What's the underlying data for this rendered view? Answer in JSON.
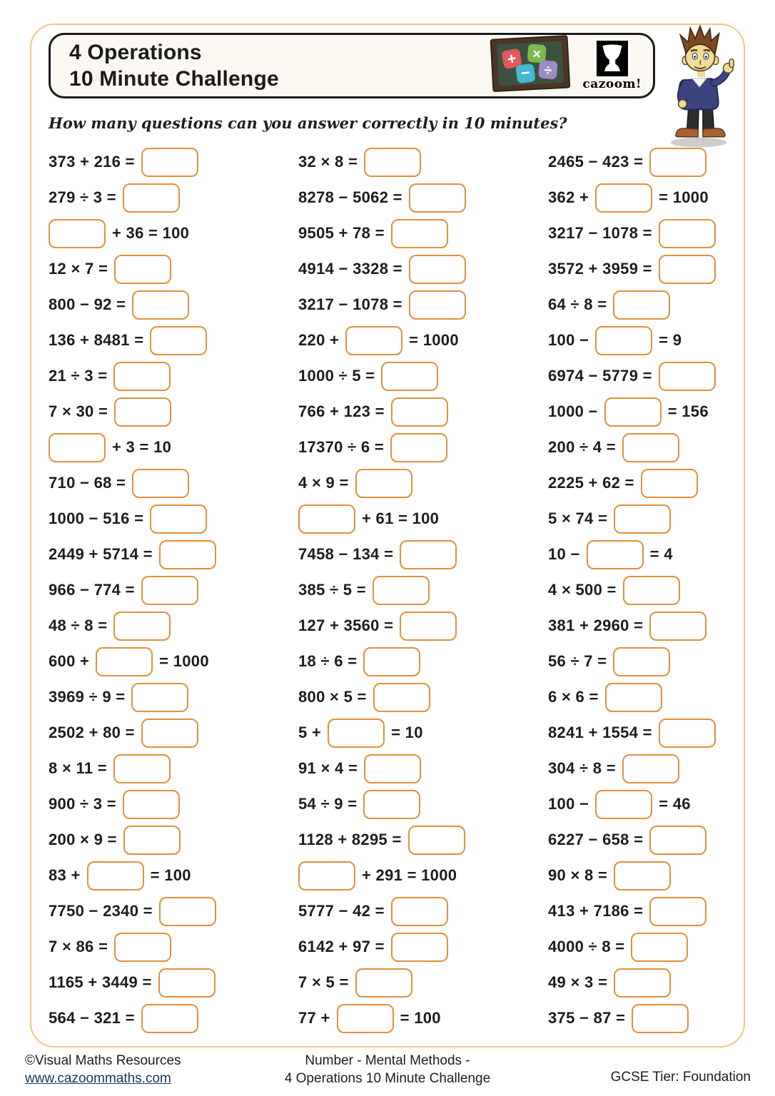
{
  "page": {
    "title_line1": "4 Operations",
    "title_line2": "10 Minute Challenge",
    "subtitle": "How many questions can you answer correctly in 10 minutes?",
    "logo_text": "cazoom!"
  },
  "colors": {
    "page_border": "#f3c684",
    "answer_box_border": "#e0913c",
    "header_border": "#1b1b1b",
    "header_fill": "#fbf8f1",
    "link": "#17365d",
    "tile_plus": "#e2595b",
    "tile_times": "#7cb94e",
    "tile_minus": "#45b8ce",
    "tile_divide": "#9b8ec4",
    "board_green": "#3e5140",
    "board_frame": "#4a3526"
  },
  "icons": {
    "chalkboard_tiles": [
      "+",
      "×",
      "−",
      "÷"
    ]
  },
  "columns": [
    {
      "problems": [
        {
          "before": "373 + 216 =",
          "after": ""
        },
        {
          "before": "279 ÷ 3 =",
          "after": ""
        },
        {
          "before": "",
          "after": "+ 36 = 100"
        },
        {
          "before": "12 × 7 =",
          "after": ""
        },
        {
          "before": "800 − 92 =",
          "after": ""
        },
        {
          "before": "136 + 8481 =",
          "after": ""
        },
        {
          "before": "21 ÷ 3 =",
          "after": ""
        },
        {
          "before": "7 × 30 =",
          "after": ""
        },
        {
          "before": "",
          "after": "+ 3 = 10"
        },
        {
          "before": "710 − 68 =",
          "after": ""
        },
        {
          "before": "1000 − 516 =",
          "after": ""
        },
        {
          "before": "2449 + 5714 =",
          "after": ""
        },
        {
          "before": "966 − 774 =",
          "after": ""
        },
        {
          "before": "48 ÷ 8 =",
          "after": ""
        },
        {
          "before": "600 +",
          "after": "= 1000"
        },
        {
          "before": "3969 ÷ 9 =",
          "after": ""
        },
        {
          "before": "2502 + 80 =",
          "after": ""
        },
        {
          "before": "8 × 11 =",
          "after": ""
        },
        {
          "before": "900 ÷ 3 =",
          "after": ""
        },
        {
          "before": "200 × 9 =",
          "after": ""
        },
        {
          "before": "83 +",
          "after": "= 100"
        },
        {
          "before": "7750 − 2340 =",
          "after": ""
        },
        {
          "before": "7 × 86 =",
          "after": ""
        },
        {
          "before": "1165 + 3449 =",
          "after": ""
        },
        {
          "before": "564 − 321 =",
          "after": ""
        }
      ]
    },
    {
      "problems": [
        {
          "before": "32 × 8 =",
          "after": ""
        },
        {
          "before": "8278 − 5062 =",
          "after": ""
        },
        {
          "before": "9505 + 78 =",
          "after": ""
        },
        {
          "before": "4914 − 3328 =",
          "after": ""
        },
        {
          "before": "3217 − 1078 =",
          "after": ""
        },
        {
          "before": "220 +",
          "after": "= 1000"
        },
        {
          "before": "1000 ÷ 5 =",
          "after": ""
        },
        {
          "before": "766 + 123 =",
          "after": ""
        },
        {
          "before": "17370 ÷ 6 =",
          "after": ""
        },
        {
          "before": "4 × 9 =",
          "after": ""
        },
        {
          "before": "",
          "after": "+ 61 = 100"
        },
        {
          "before": "7458 − 134 =",
          "after": ""
        },
        {
          "before": "385 ÷ 5 =",
          "after": ""
        },
        {
          "before": "127 + 3560 =",
          "after": ""
        },
        {
          "before": "18 ÷ 6 =",
          "after": ""
        },
        {
          "before": "800 × 5 =",
          "after": ""
        },
        {
          "before": "5 +",
          "after": "= 10"
        },
        {
          "before": "91 × 4 =",
          "after": ""
        },
        {
          "before": "54 ÷ 9 =",
          "after": ""
        },
        {
          "before": "1128 + 8295 =",
          "after": ""
        },
        {
          "before": "",
          "after": "+ 291 = 1000"
        },
        {
          "before": "5777 − 42 =",
          "after": ""
        },
        {
          "before": "6142 + 97 =",
          "after": ""
        },
        {
          "before": "7 × 5 =",
          "after": ""
        },
        {
          "before": "77 +",
          "after": "= 100"
        }
      ]
    },
    {
      "problems": [
        {
          "before": "2465 − 423 =",
          "after": ""
        },
        {
          "before": "362 +",
          "after": "= 1000"
        },
        {
          "before": "3217 − 1078 =",
          "after": ""
        },
        {
          "before": "3572 + 3959 =",
          "after": ""
        },
        {
          "before": "64 ÷ 8 =",
          "after": ""
        },
        {
          "before": "100 −",
          "after": "= 9"
        },
        {
          "before": "6974 − 5779 =",
          "after": ""
        },
        {
          "before": "1000 −",
          "after": "= 156"
        },
        {
          "before": "200 ÷ 4 =",
          "after": ""
        },
        {
          "before": "2225 + 62 =",
          "after": ""
        },
        {
          "before": "5 × 74 =",
          "after": ""
        },
        {
          "before": "10 −",
          "after": "= 4"
        },
        {
          "before": "4 × 500 =",
          "after": ""
        },
        {
          "before": "381 + 2960 =",
          "after": ""
        },
        {
          "before": "56 ÷ 7 =",
          "after": ""
        },
        {
          "before": "6 × 6 =",
          "after": ""
        },
        {
          "before": "8241 + 1554 =",
          "after": ""
        },
        {
          "before": "304 ÷ 8 =",
          "after": ""
        },
        {
          "before": "100 −",
          "after": "= 46"
        },
        {
          "before": "6227 − 658 =",
          "after": ""
        },
        {
          "before": "90 × 8 =",
          "after": ""
        },
        {
          "before": "413 + 7186 =",
          "after": ""
        },
        {
          "before": "4000 ÷ 8 =",
          "after": ""
        },
        {
          "before": "49 × 3 =",
          "after": ""
        },
        {
          "before": "375 − 87 =",
          "after": ""
        }
      ]
    }
  ],
  "footer": {
    "copyright": "©Visual Maths Resources",
    "link": "www.cazoommaths.com",
    "center_line1": "Number - Mental Methods -",
    "center_line2": "4 Operations 10 Minute Challenge",
    "right": "GCSE Tier: Foundation"
  }
}
